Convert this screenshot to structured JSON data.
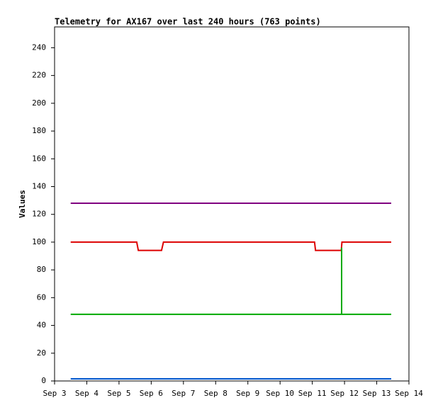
{
  "chart_data": {
    "type": "line",
    "title": "Telemetry for AX167 over last 240 hours (763 points)",
    "y_label": "Values",
    "xlim": [
      3,
      14
    ],
    "xticks": [
      {
        "value": 3,
        "label": "Sep 3"
      },
      {
        "value": 4,
        "label": "Sep 4"
      },
      {
        "value": 5,
        "label": "Sep 5"
      },
      {
        "value": 6,
        "label": "Sep 6"
      },
      {
        "value": 7,
        "label": "Sep 7"
      },
      {
        "value": 8,
        "label": "Sep 8"
      },
      {
        "value": 9,
        "label": "Sep 9"
      },
      {
        "value": 10,
        "label": "Sep 10"
      },
      {
        "value": 11,
        "label": "Sep 11"
      },
      {
        "value": 12,
        "label": "Sep 12"
      },
      {
        "value": 13,
        "label": "Sep 13"
      },
      {
        "value": 14,
        "label": "Sep 14"
      }
    ],
    "ylim": [
      0,
      255
    ],
    "yticks": [
      0,
      20,
      40,
      60,
      80,
      100,
      120,
      140,
      160,
      180,
      200,
      220,
      240
    ],
    "series": [
      {
        "color": "#800080",
        "x": [
          3.5,
          13.45
        ],
        "values": [
          128,
          128
        ]
      },
      {
        "color": "#dd0000",
        "x": [
          3.5,
          5.55,
          5.6,
          6.32,
          6.38,
          11.07,
          11.1,
          11.9,
          11.92,
          13.45
        ],
        "values": [
          100,
          100,
          94,
          94,
          100,
          100,
          94,
          94,
          100,
          100
        ]
      },
      {
        "color": "#00aa00",
        "x": [
          3.5,
          11.91,
          11.91,
          11.91,
          13.45
        ],
        "values": [
          48,
          48,
          96,
          48,
          48
        ]
      },
      {
        "color": "#0055cc",
        "x": [
          3.5,
          13.45
        ],
        "values": [
          1.5,
          1.5
        ]
      }
    ]
  }
}
